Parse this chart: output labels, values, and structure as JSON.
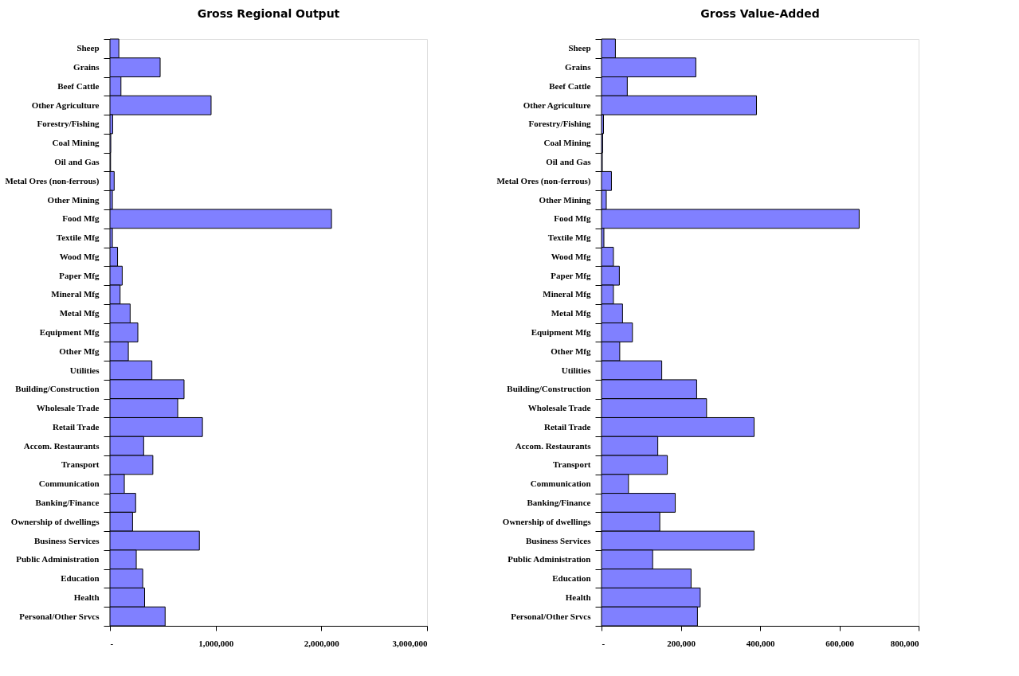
{
  "chart_data": [
    {
      "type": "bar",
      "orientation": "horizontal",
      "title": "Gross Regional Output",
      "color": "#8080ff",
      "categories": [
        "Sheep",
        "Grains",
        "Beef Cattle",
        "Other Agriculture",
        "Forestry/Fishing",
        "Coal Mining",
        "Oil and Gas",
        "Metal Ores (non-ferrous)",
        "Other Mining",
        "Food Mfg",
        "Textile Mfg",
        "Wood Mfg",
        "Paper Mfg",
        "Mineral Mfg",
        "Metal Mfg",
        "Equipment Mfg",
        "Other Mfg",
        "Utilities",
        "Building/Construction",
        "Wholesale Trade",
        "Retail Trade",
        "Accom. Restaurants",
        "Transport",
        "Communication",
        "Banking/Finance",
        "Ownership of dwellings",
        "Business Services",
        "Public Administration",
        "Education",
        "Health",
        "Personal/Other Srvcs"
      ],
      "values": [
        84000,
        475000,
        104000,
        957000,
        26000,
        8000,
        6000,
        40000,
        23000,
        2096000,
        23000,
        72000,
        116000,
        96000,
        191000,
        264000,
        174000,
        397000,
        701000,
        641000,
        875000,
        319000,
        406000,
        136000,
        243000,
        214000,
        846000,
        249000,
        310000,
        328000,
        522000
      ],
      "xlim": [
        0,
        3000000
      ],
      "xticks": [
        {
          "value": 0,
          "label": "-"
        },
        {
          "value": 1000000,
          "label": "1,000,000"
        },
        {
          "value": 2000000,
          "label": "2,000,000"
        },
        {
          "value": 3000000,
          "label": "3,000,000"
        }
      ],
      "grid": false
    },
    {
      "type": "bar",
      "orientation": "horizontal",
      "title": "Gross Value-Added",
      "color": "#8080ff",
      "categories": [
        "Sheep",
        "Grains",
        "Beef Cattle",
        "Other Agriculture",
        "Forestry/Fishing",
        "Coal Mining",
        "Oil and Gas",
        "Metal Ores (non-ferrous)",
        "Other Mining",
        "Food Mfg",
        "Textile Mfg",
        "Wood Mfg",
        "Paper Mfg",
        "Mineral Mfg",
        "Metal Mfg",
        "Equipment Mfg",
        "Other Mfg",
        "Utilities",
        "Building/Construction",
        "Wholesale Trade",
        "Retail Trade",
        "Accom. Restaurants",
        "Transport",
        "Communication",
        "Banking/Finance",
        "Ownership of dwellings",
        "Business Services",
        "Public Administration",
        "Education",
        "Health",
        "Personal/Other Srvcs"
      ],
      "values": [
        35000,
        238000,
        65000,
        391000,
        5000,
        3000,
        2000,
        25000,
        12000,
        650000,
        6000,
        30000,
        45000,
        30000,
        53000,
        78000,
        46000,
        152000,
        240000,
        265000,
        385000,
        142000,
        166000,
        68000,
        186000,
        147000,
        385000,
        129000,
        226000,
        249000,
        242000
      ],
      "xlim": [
        0,
        800000
      ],
      "xticks": [
        {
          "value": 0,
          "label": "-"
        },
        {
          "value": 200000,
          "label": "200,000"
        },
        {
          "value": 400000,
          "label": "400,000"
        },
        {
          "value": 600000,
          "label": "600,000"
        },
        {
          "value": 800000,
          "label": "800,000"
        }
      ],
      "grid": false
    }
  ]
}
